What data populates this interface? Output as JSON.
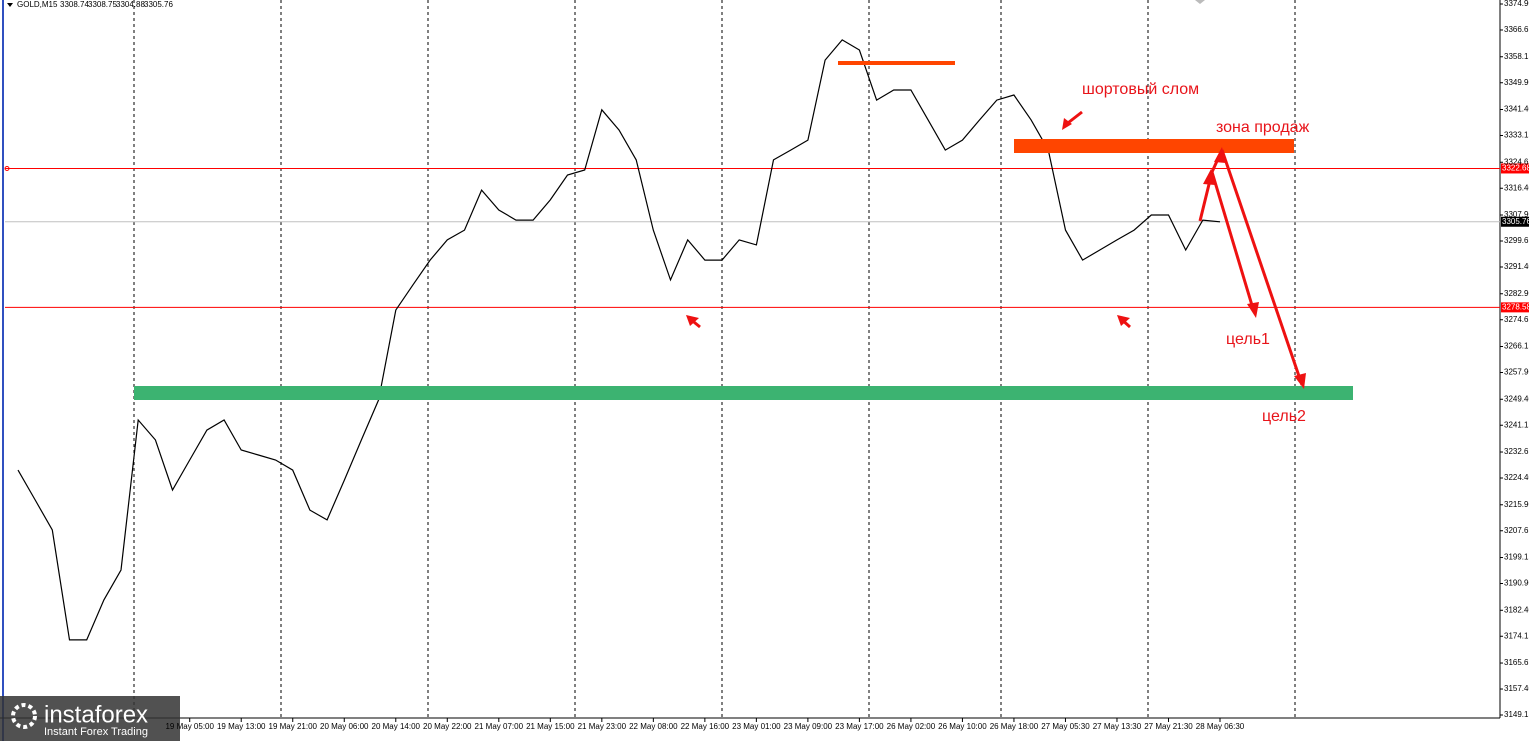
{
  "chart_data": {
    "type": "line",
    "symbol": "GOLD,M15",
    "ohlc": [
      3308.74,
      3308.75,
      3304.88,
      3305.76
    ],
    "categories": [
      null,
      null,
      null,
      null,
      null,
      null,
      null,
      null,
      null,
      null,
      "19 May 05:00",
      null,
      null,
      "19 May 13:00",
      null,
      null,
      "19 May 21:00",
      null,
      null,
      "20 May 06:00",
      null,
      null,
      "20 May 14:00",
      null,
      null,
      "20 May 22:00",
      null,
      null,
      "21 May 07:00",
      null,
      null,
      "21 May 15:00",
      null,
      null,
      "21 May 23:00",
      null,
      null,
      "22 May 08:00",
      null,
      null,
      "22 May 16:00",
      null,
      null,
      "23 May 01:00",
      null,
      null,
      "23 May 09:00",
      null,
      null,
      "23 May 17:00",
      null,
      null,
      "26 May 02:00",
      null,
      null,
      "26 May 10:00",
      null,
      null,
      "26 May 18:00",
      null,
      null,
      "27 May 05:30",
      null,
      null,
      "27 May 13:30",
      null,
      null,
      "27 May 21:30",
      null,
      null,
      "28 May 06:30"
    ],
    "values": [
      3226.9,
      3217.4,
      3207.9,
      3173,
      3173,
      3185.7,
      3195.2,
      3242.8,
      3236.5,
      3220.6,
      3230.1,
      3239.6,
      3242.8,
      3233.3,
      3231.7,
      3230.1,
      3226.9,
      3214.2,
      3211.1,
      3223.7,
      3236.5,
      3249.2,
      3277.7,
      3285.7,
      3293.6,
      3300,
      3303.1,
      3315.8,
      3309.5,
      3306.3,
      3306.3,
      3312.7,
      3320.6,
      3322.2,
      3341.3,
      3334.9,
      3325.4,
      3303.1,
      3287.3,
      3300,
      3293.6,
      3293.6,
      3300,
      3298.4,
      3325.4,
      3328.5,
      3331.7,
      3357.1,
      3363.5,
      3360.3,
      3344.4,
      3347.6,
      3347.6,
      3338.1,
      3328.5,
      3331.7,
      3338.1,
      3344.4,
      3346,
      3338.1,
      3328.5,
      3303.1,
      3293.6,
      3296.8,
      3300,
      3303.1,
      3307.9,
      3307.9,
      3296.8,
      3306.3,
      3305.76
    ],
    "color": "#000000",
    "ylim": [
      3149.15,
      3374.9
    ],
    "yticks": [
      {
        "value": 3374.9,
        "label": "3374.90"
      },
      3366.65,
      3358.15,
      {
        "value": 3349.9,
        "label": "3349.90"
      },
      {
        "value": 3341.4,
        "label": "3341.40"
      },
      3333.15,
      3324.65,
      {
        "value": 3316.4,
        "label": "3316.40"
      },
      {
        "value": 3307.9,
        "label": "3307.90"
      },
      3299.65,
      {
        "value": 3291.4,
        "label": "3291.40"
      },
      {
        "value": 3282.9,
        "label": "3282.90"
      },
      3274.65,
      3266.15,
      {
        "value": 3257.9,
        "label": "3257.90"
      },
      {
        "value": 3249.4,
        "label": "3249.40"
      },
      3241.15,
      3232.65,
      {
        "value": 3224.4,
        "label": "3224.40"
      },
      {
        "value": 3215.9,
        "label": "3215.90"
      },
      3207.65,
      3199.15,
      {
        "value": 3190.9,
        "label": "3190.90"
      },
      {
        "value": 3182.4,
        "label": "3182.40"
      },
      3174.15,
      3165.65,
      {
        "value": 3157.4,
        "label": "3157.40"
      },
      3149.15
    ],
    "levels": [
      {
        "value": 3322.68,
        "color": "#ff0000"
      },
      {
        "value": 3278.58,
        "color": "#ff0000"
      },
      {
        "value": 3305.76,
        "color": "#c0c0c0"
      }
    ],
    "annotations": [
      "шортовый слом",
      "зона продаж",
      "цель1",
      "цель2"
    ],
    "watermark": {
      "name": "instaforex",
      "tagline": "Instant Forex Trading"
    }
  }
}
